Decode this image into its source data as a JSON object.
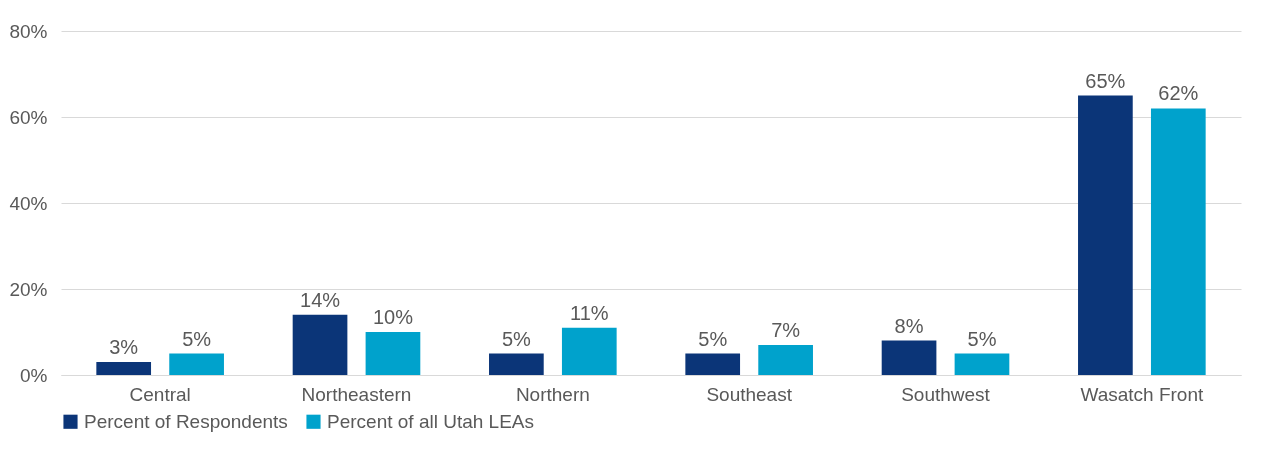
{
  "chart_data": {
    "type": "bar",
    "categories": [
      "Central",
      "Northeastern",
      "Northern",
      "Southeast",
      "Southwest",
      "Wasatch Front"
    ],
    "series": [
      {
        "name": "Percent of Respondents",
        "color": "#0b3578",
        "values": [
          3,
          14,
          5,
          5,
          8,
          65
        ],
        "value_labels": [
          "3%",
          "14%",
          "5%",
          "5%",
          "8%",
          "65%"
        ]
      },
      {
        "name": "Percent of all Utah LEAs",
        "color": "#00a2cc",
        "values": [
          5,
          10,
          11,
          7,
          5,
          62
        ],
        "value_labels": [
          "5%",
          "10%",
          "11%",
          "7%",
          "5%",
          "62%"
        ]
      }
    ],
    "ylim": [
      0,
      80
    ],
    "yticks": [
      {
        "value": 0,
        "label": "0%"
      },
      {
        "value": 20,
        "label": "20%"
      },
      {
        "value": 40,
        "label": "40%"
      },
      {
        "value": 60,
        "label": "60%"
      },
      {
        "value": 80,
        "label": "80%"
      }
    ],
    "grid": "y",
    "legend": "bottom"
  }
}
